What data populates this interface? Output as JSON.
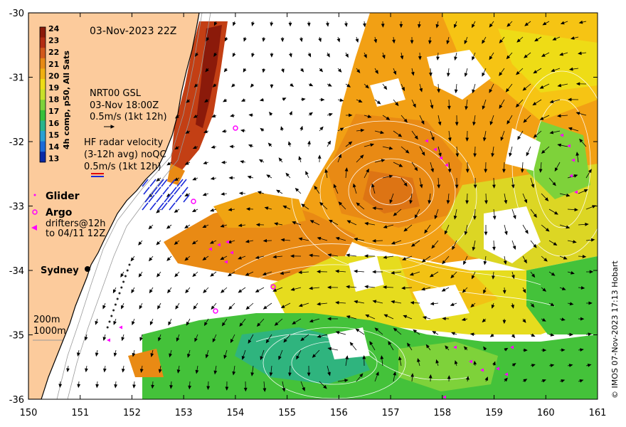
{
  "title": "03-Nov-2023 22Z",
  "colorbar": {
    "label": "4h comp, p50, All Sats",
    "ticks": [
      "24",
      "23",
      "22",
      "21",
      "20",
      "19",
      "18",
      "17",
      "16",
      "15",
      "14",
      "13"
    ],
    "colors": [
      "#8b1a0a",
      "#b22c12",
      "#d2581a",
      "#e78a14",
      "#f0b012",
      "#eedc16",
      "#c8e02a",
      "#7ed23a",
      "#36c03a",
      "#2ab48c",
      "#2aa0d2",
      "#1c6ad8",
      "#0a2aa6"
    ]
  },
  "legend": {
    "gsl_line1": "NRT00 GSL",
    "gsl_line2": "03-Nov 18:00Z",
    "gsl_scale": "0.5m/s (1kt 12h)",
    "hf_line1": "HF radar velocity",
    "hf_line2": "(3-12h avg) noQC",
    "hf_scale": "0.5m/s (1kt 12h)",
    "glider": "Glider",
    "argo": "Argo",
    "drifters_line1": "drifters@12h",
    "drifters_line2": "to 04/11 12Z",
    "city": "Sydney",
    "iso200": "200m",
    "iso1000": "1000m"
  },
  "credit": "© IMOS 07-Nov-2023 17:13 Hobart",
  "axes": {
    "x_ticks": [
      "150",
      "151",
      "152",
      "153",
      "154",
      "155",
      "156",
      "157",
      "158",
      "159",
      "160",
      "161"
    ],
    "y_ticks": [
      "-30",
      "-31",
      "-32",
      "-33",
      "-34",
      "-35",
      "-36"
    ],
    "lon_range": [
      150,
      161
    ],
    "lat_range": [
      -36,
      -30
    ]
  },
  "colors": {
    "land": "#fccb9c",
    "frame": "#000000",
    "glider": "#ff00ff",
    "argo": "#ff00ff"
  }
}
